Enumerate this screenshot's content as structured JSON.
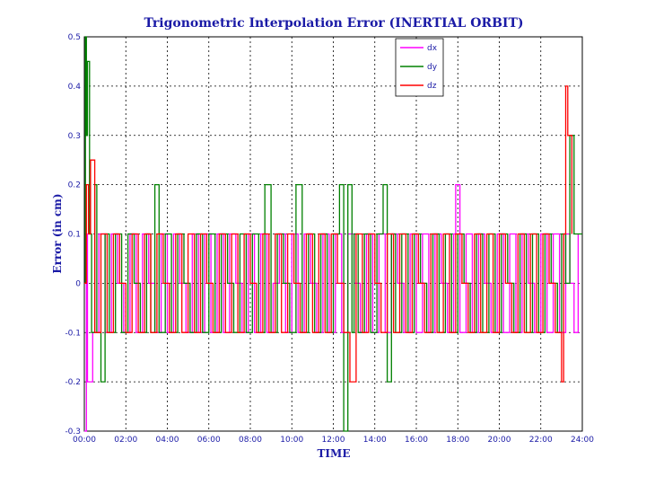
{
  "chart_data": {
    "type": "line",
    "title": "Trigonometric Interpolation Error (INERTIAL ORBIT)",
    "xlabel": "TIME",
    "ylabel": "Error (in cm)",
    "xlim": [
      0,
      24
    ],
    "ylim": [
      -0.3,
      0.5
    ],
    "x_tick_labels": [
      "00:00",
      "02:00",
      "04:00",
      "06:00",
      "08:00",
      "10:00",
      "12:00",
      "14:00",
      "16:00",
      "18:00",
      "20:00",
      "22:00",
      "24:00"
    ],
    "y_tick_labels": [
      "-0.3",
      "-0.2",
      "-0.1",
      "0",
      "0.1",
      "0.2",
      "0.3",
      "0.4",
      "0.5"
    ],
    "grid": true,
    "legend_position": "top-right",
    "series": [
      {
        "name": "dx",
        "color": "#ff00ff",
        "x": [
          0.0,
          0.1,
          0.15,
          0.4,
          0.7,
          1.0,
          1.3,
          1.6,
          1.9,
          2.2,
          2.5,
          2.8,
          3.1,
          3.4,
          3.7,
          4.0,
          4.3,
          4.6,
          4.9,
          5.2,
          5.5,
          5.8,
          6.1,
          6.4,
          6.7,
          7.0,
          7.3,
          7.6,
          7.9,
          8.2,
          8.5,
          8.8,
          9.1,
          9.4,
          9.7,
          10.0,
          10.3,
          10.6,
          10.9,
          11.2,
          11.5,
          11.8,
          12.1,
          12.4,
          12.7,
          13.0,
          13.3,
          13.6,
          13.9,
          14.2,
          14.5,
          14.8,
          15.1,
          15.4,
          15.7,
          16.0,
          16.3,
          16.6,
          16.9,
          17.2,
          17.5,
          17.8,
          17.9,
          18.1,
          18.4,
          18.7,
          19.0,
          19.3,
          19.6,
          19.9,
          20.2,
          20.5,
          20.8,
          21.1,
          21.4,
          21.7,
          22.0,
          22.3,
          22.6,
          22.9,
          23.2,
          23.4,
          23.6,
          23.8
        ],
        "y": [
          -0.3,
          0.1,
          -0.2,
          -0.1,
          0.1,
          -0.1,
          0.1,
          0,
          -0.1,
          0.1,
          -0.1,
          0.1,
          0,
          -0.1,
          0.1,
          -0.1,
          0.1,
          0,
          -0.1,
          0.1,
          -0.1,
          0.1,
          -0.1,
          0.1,
          -0.1,
          0.1,
          0,
          -0.1,
          0.1,
          -0.1,
          0.1,
          -0.1,
          0,
          0.1,
          -0.1,
          0.1,
          -0.1,
          0.1,
          0,
          -0.1,
          0.1,
          -0.1,
          0.1,
          -0.1,
          0.1,
          0,
          -0.1,
          0.1,
          -0.1,
          0.1,
          -0.1,
          0.1,
          0,
          -0.1,
          0.1,
          -0.1,
          0.1,
          -0.1,
          0.1,
          0,
          -0.1,
          0.1,
          0.2,
          -0.1,
          0.1,
          -0.1,
          0.1,
          0,
          -0.1,
          0.1,
          -0.1,
          0.1,
          -0.1,
          0.1,
          0,
          -0.1,
          0.1,
          -0.1,
          0.1,
          -0.1,
          0.1,
          0,
          -0.1,
          0.1
        ]
      },
      {
        "name": "dy",
        "color": "#008000",
        "x": [
          0.0,
          0.05,
          0.1,
          0.15,
          0.25,
          0.35,
          0.5,
          0.6,
          0.8,
          1.0,
          1.2,
          1.5,
          1.8,
          2.1,
          2.4,
          2.7,
          3.0,
          3.2,
          3.4,
          3.6,
          3.9,
          4.2,
          4.5,
          4.8,
          5.1,
          5.4,
          5.7,
          6.0,
          6.3,
          6.6,
          6.9,
          7.2,
          7.5,
          7.8,
          8.1,
          8.4,
          8.7,
          9.0,
          9.3,
          9.6,
          9.9,
          10.2,
          10.5,
          10.8,
          11.1,
          11.4,
          11.7,
          12.0,
          12.3,
          12.5,
          12.7,
          12.9,
          13.0,
          13.2,
          13.5,
          13.8,
          14.1,
          14.4,
          14.6,
          14.8,
          15.0,
          15.3,
          15.6,
          15.9,
          16.2,
          16.5,
          16.8,
          17.1,
          17.4,
          17.7,
          18.0,
          18.3,
          18.6,
          18.9,
          19.2,
          19.5,
          19.8,
          20.1,
          20.4,
          20.7,
          21.0,
          21.3,
          21.6,
          21.9,
          22.2,
          22.5,
          22.8,
          23.0,
          23.2,
          23.4,
          23.6,
          23.8,
          24.0
        ],
        "y": [
          0,
          0.5,
          0.3,
          0.45,
          0.1,
          -0.1,
          0.2,
          -0.1,
          -0.2,
          0.1,
          -0.1,
          0.1,
          -0.1,
          0.1,
          0,
          -0.1,
          0.1,
          -0.1,
          0.2,
          -0.1,
          0.1,
          -0.1,
          0.1,
          0,
          -0.1,
          0.1,
          -0.1,
          0.1,
          -0.1,
          0.1,
          0,
          -0.1,
          0.1,
          -0.1,
          0.1,
          -0.1,
          0.2,
          -0.1,
          0.1,
          0,
          -0.1,
          0.2,
          -0.1,
          0.1,
          -0.1,
          0.1,
          -0.1,
          0.1,
          0.2,
          -0.3,
          0.2,
          -0.1,
          0.1,
          -0.1,
          0.1,
          -0.1,
          0.1,
          0.2,
          -0.2,
          0.1,
          -0.1,
          0.1,
          -0.1,
          0.1,
          0,
          -0.1,
          0.1,
          -0.1,
          0.1,
          -0.1,
          0.1,
          0,
          -0.1,
          0.1,
          -0.1,
          0.1,
          -0.1,
          0.1,
          0,
          -0.1,
          0.1,
          -0.1,
          0.1,
          -0.1,
          0.1,
          0,
          -0.1,
          0.1,
          0,
          0.3,
          0.1,
          0.1,
          0.1
        ]
      },
      {
        "name": "dz",
        "color": "#ff0000",
        "x": [
          0.0,
          0.1,
          0.2,
          0.3,
          0.5,
          0.8,
          1.1,
          1.4,
          1.7,
          2.0,
          2.3,
          2.6,
          2.9,
          3.2,
          3.5,
          3.8,
          4.1,
          4.4,
          4.7,
          5.0,
          5.3,
          5.6,
          5.9,
          6.2,
          6.5,
          6.8,
          7.1,
          7.4,
          7.7,
          8.0,
          8.3,
          8.6,
          8.9,
          9.2,
          9.5,
          9.8,
          10.1,
          10.4,
          10.7,
          11.0,
          11.3,
          11.6,
          11.9,
          12.2,
          12.5,
          12.8,
          13.1,
          13.4,
          13.7,
          14.0,
          14.3,
          14.6,
          14.9,
          15.2,
          15.5,
          15.8,
          16.1,
          16.4,
          16.7,
          17.0,
          17.3,
          17.6,
          17.9,
          18.2,
          18.5,
          18.8,
          19.1,
          19.4,
          19.7,
          20.0,
          20.3,
          20.6,
          20.9,
          21.2,
          21.5,
          21.8,
          22.1,
          22.4,
          22.7,
          23.0,
          23.1,
          23.2,
          23.3,
          23.5
        ],
        "y": [
          0,
          0.2,
          0.1,
          0.25,
          -0.1,
          0.1,
          -0.1,
          0.1,
          0,
          -0.1,
          0.1,
          -0.1,
          0.1,
          -0.1,
          0.1,
          0,
          -0.1,
          0.1,
          -0.1,
          0.1,
          -0.1,
          0.1,
          0,
          -0.1,
          0.1,
          -0.1,
          0.1,
          -0.1,
          0.1,
          0,
          -0.1,
          0.1,
          -0.1,
          0.1,
          -0.1,
          0.1,
          0,
          -0.1,
          0.1,
          -0.1,
          0.1,
          -0.1,
          0.1,
          0,
          -0.1,
          -0.2,
          0.1,
          -0.1,
          0.1,
          0,
          -0.1,
          0.1,
          -0.1,
          0.1,
          -0.1,
          0.1,
          0,
          -0.1,
          0.1,
          -0.1,
          0.1,
          -0.1,
          0.1,
          0,
          -0.1,
          0.1,
          -0.1,
          0.1,
          -0.1,
          0.1,
          0,
          -0.1,
          0.1,
          -0.1,
          0.1,
          -0.1,
          0.1,
          0,
          -0.1,
          -0.2,
          0.1,
          0.4,
          0.3,
          0.1
        ]
      }
    ]
  }
}
